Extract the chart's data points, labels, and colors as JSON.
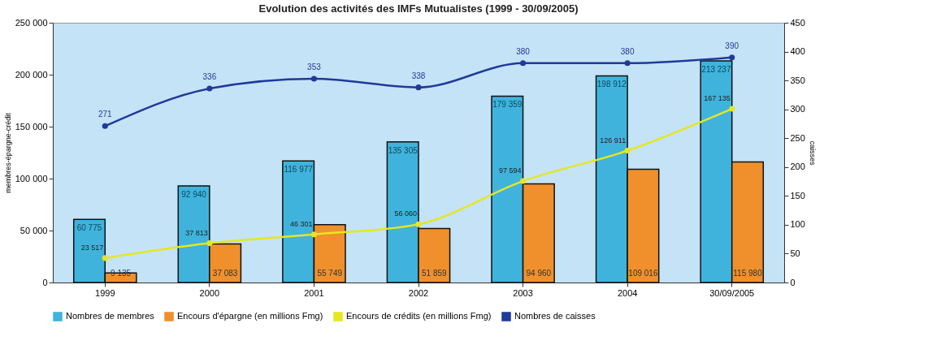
{
  "chart_data": {
    "type": "bar",
    "title": "Evolution des activités des IMFs Mutualistes (1999 - 30/09/2005)",
    "categories": [
      "1999",
      "2000",
      "2001",
      "2002",
      "2003",
      "2004",
      "30/09/2005"
    ],
    "ylabel": "membres-épargne-crédit",
    "y2label": "caisses",
    "series": [
      {
        "name": "Nombres de membres",
        "color": "#3fb3dc",
        "values": [
          60775,
          92940,
          116977,
          135305,
          179359,
          198912,
          213237
        ],
        "value_labels": [
          "60 775",
          "92 940",
          "116 977",
          "135 305",
          "179 359",
          "198 912",
          "213 237"
        ]
      },
      {
        "name": "Encours d'épargne (en millions Fmg)",
        "color": "#f0902c",
        "values": [
          9135,
          37083,
          55749,
          51859,
          94960,
          109016,
          115980
        ],
        "value_labels": [
          "9 135",
          "37 083",
          "55 749",
          "51 859",
          "94 960",
          "109 016",
          "115 980"
        ]
      },
      {
        "name": "Encours de crédits (en millions Fmg)",
        "type": "line",
        "color": "#e6e622",
        "values": [
          23517,
          37813,
          46301,
          56060,
          97594,
          126911,
          167135
        ],
        "value_labels": [
          "23 517",
          "37 813",
          "46 301",
          "56 060",
          "97 594",
          "126 911",
          "167 135"
        ]
      },
      {
        "name": "Nombres de caisses",
        "type": "line",
        "axis": "y2",
        "color": "#1f3a9a",
        "values": [
          271,
          336,
          353,
          338,
          380,
          380,
          390
        ],
        "value_labels": [
          "271",
          "336",
          "353",
          "338",
          "380",
          "380",
          "390"
        ]
      }
    ],
    "ylim": [
      0,
      250000
    ],
    "yticks": [
      0,
      {
        "value": 50000,
        "label": "50 000"
      },
      {
        "value": 100000,
        "label": "100 000"
      },
      {
        "value": 150000,
        "label": "150 000"
      },
      {
        "value": 200000,
        "label": "200 000"
      },
      {
        "value": 250000,
        "label": "250 000"
      }
    ],
    "y2lim": [
      0,
      450
    ],
    "y2ticks": [
      0,
      50,
      100,
      150,
      200,
      250,
      300,
      350,
      400,
      450
    ],
    "marker": "circle",
    "legend": "bottom",
    "grid": false
  }
}
